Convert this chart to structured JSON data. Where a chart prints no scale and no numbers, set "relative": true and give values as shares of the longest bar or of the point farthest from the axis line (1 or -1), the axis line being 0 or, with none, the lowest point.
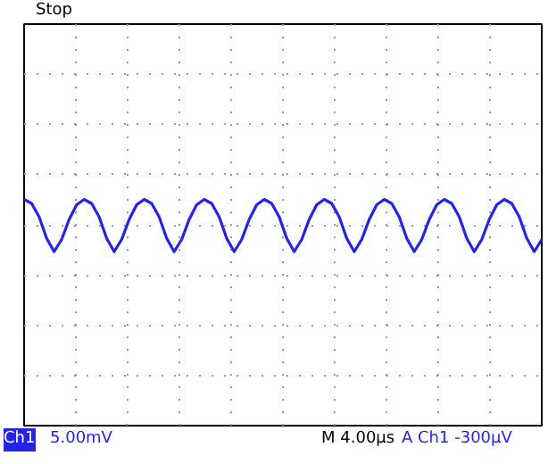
{
  "chart_data": {
    "type": "line",
    "relative": true,
    "categories": [
      null,
      null,
      null,
      null,
      null,
      null,
      null,
      null,
      null,
      null,
      null,
      null,
      null,
      null,
      null,
      null,
      null,
      null,
      null,
      null,
      null,
      null,
      null,
      null,
      null,
      null,
      null,
      null,
      null,
      null,
      null,
      null,
      null,
      null,
      null,
      null,
      null,
      null,
      null,
      null,
      null,
      null,
      null,
      null,
      null,
      null,
      null,
      null,
      null,
      null,
      null,
      null,
      null,
      null,
      null,
      null,
      null,
      null,
      null,
      null,
      null,
      null,
      null,
      null,
      null,
      null,
      null,
      null,
      null,
      null
    ],
    "series": [
      {
        "color": "#2424e6",
        "values": [
          0.95,
          0.8,
          0.3,
          -0.5,
          -1,
          -0.55,
          0.2,
          0.75,
          0.95,
          0.8,
          0.3,
          -0.5,
          -1,
          -0.55,
          0.2,
          0.75,
          0.95,
          0.8,
          0.3,
          -0.5,
          -1,
          -0.55,
          0.2,
          0.75,
          0.95,
          0.8,
          0.3,
          -0.5,
          -1,
          -0.55,
          0.2,
          0.75,
          0.95,
          0.8,
          0.3,
          -0.5,
          -1,
          -0.55,
          0.2,
          0.75,
          0.95,
          0.8,
          0.3,
          -0.5,
          -1,
          -0.55,
          0.2,
          0.75,
          0.95,
          0.8,
          0.3,
          -0.5,
          -1,
          -0.55,
          0.2,
          0.75,
          0.95,
          0.8,
          0.3,
          -0.5,
          -1,
          -0.55,
          0.2,
          0.75,
          0.95,
          0.8,
          0.3,
          -0.5,
          -1,
          -0.55
        ]
      }
    ],
    "grid": true,
    "marker": "none",
    "line_style": "solid",
    "annotations": [
      "Stop",
      "Ch1",
      "5.00mV",
      "M 4.00µs",
      "A Ch1 -300µV"
    ]
  }
}
